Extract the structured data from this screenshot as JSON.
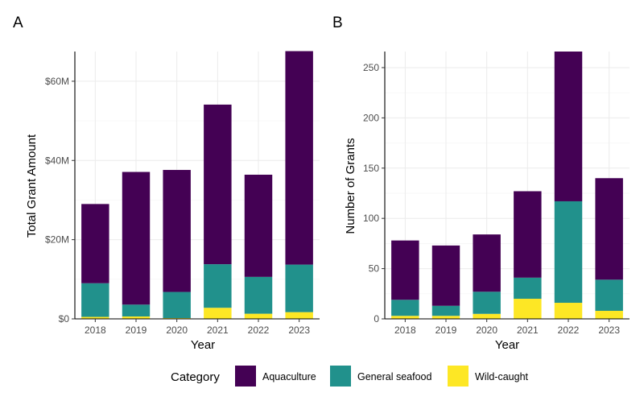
{
  "chart_data": [
    {
      "panel": "A",
      "type": "bar",
      "stacked": true,
      "xlabel": "Year",
      "ylabel": "Total Grant Amount",
      "categories": [
        "2018",
        "2019",
        "2020",
        "2021",
        "2022",
        "2023"
      ],
      "series": [
        {
          "name": "Wild-caught",
          "color": "#fde725",
          "values": [
            0.5,
            0.6,
            0.2,
            2.8,
            1.3,
            1.7
          ]
        },
        {
          "name": "General seafood",
          "color": "#21918c",
          "values": [
            8.5,
            3.0,
            6.6,
            11.0,
            9.3,
            12.0
          ]
        },
        {
          "name": "Aquaculture",
          "color": "#440154",
          "values": [
            20.0,
            33.5,
            30.8,
            40.3,
            25.8,
            53.9
          ]
        }
      ],
      "ylim": [
        0,
        67.5
      ],
      "yticks": [
        0,
        20,
        40,
        60
      ],
      "ytick_labels": [
        "$0",
        "$20M",
        "$40M",
        "$60M"
      ],
      "grid": true
    },
    {
      "panel": "B",
      "type": "bar",
      "stacked": true,
      "xlabel": "Year",
      "ylabel": "Number of Grants",
      "categories": [
        "2018",
        "2019",
        "2020",
        "2021",
        "2022",
        "2023"
      ],
      "series": [
        {
          "name": "Wild-caught",
          "color": "#fde725",
          "values": [
            3,
            3,
            5,
            20,
            16,
            8
          ]
        },
        {
          "name": "General seafood",
          "color": "#21918c",
          "values": [
            16,
            10,
            22,
            21,
            101,
            31
          ]
        },
        {
          "name": "Aquaculture",
          "color": "#440154",
          "values": [
            59,
            60,
            57,
            86,
            149,
            101
          ]
        }
      ],
      "ylim": [
        0,
        266
      ],
      "yticks": [
        0,
        50,
        100,
        150,
        200,
        250
      ],
      "ytick_labels": [
        "0",
        "50",
        "100",
        "150",
        "200",
        "250"
      ],
      "grid": true
    }
  ],
  "legend": {
    "title": "Category",
    "position": "bottom",
    "items": [
      {
        "label": "Aquaculture",
        "color": "#440154"
      },
      {
        "label": "General seafood",
        "color": "#21918c"
      },
      {
        "label": "Wild-caught",
        "color": "#fde725"
      }
    ]
  }
}
